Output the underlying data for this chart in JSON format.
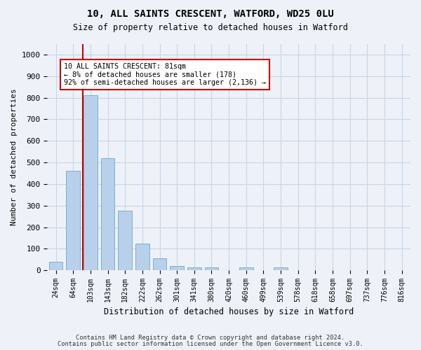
{
  "title1": "10, ALL SAINTS CRESCENT, WATFORD, WD25 0LU",
  "title2": "Size of property relative to detached houses in Watford",
  "xlabel": "Distribution of detached houses by size in Watford",
  "ylabel": "Number of detached properties",
  "categories": [
    "24sqm",
    "64sqm",
    "103sqm",
    "143sqm",
    "182sqm",
    "222sqm",
    "262sqm",
    "301sqm",
    "341sqm",
    "380sqm",
    "420sqm",
    "460sqm",
    "499sqm",
    "539sqm",
    "578sqm",
    "618sqm",
    "658sqm",
    "697sqm",
    "737sqm",
    "776sqm",
    "816sqm"
  ],
  "values": [
    40,
    460,
    810,
    520,
    275,
    125,
    55,
    20,
    12,
    12,
    0,
    12,
    0,
    12,
    0,
    0,
    0,
    0,
    0,
    0,
    0
  ],
  "bar_color": "#b8d0ea",
  "bar_edge_color": "#7aafd4",
  "grid_color": "#c8d4e8",
  "background_color": "#eef2f8",
  "ylim": [
    0,
    1050
  ],
  "yticks": [
    0,
    100,
    200,
    300,
    400,
    500,
    600,
    700,
    800,
    900,
    1000
  ],
  "vline_x": 1.55,
  "vline_color": "#cc0000",
  "annotation_line1": "10 ALL SAINTS CRESCENT: 81sqm",
  "annotation_line2": "← 8% of detached houses are smaller (178)",
  "annotation_line3": "92% of semi-detached houses are larger (2,136) →",
  "annotation_box_color": "#cc0000",
  "footer1": "Contains HM Land Registry data © Crown copyright and database right 2024.",
  "footer2": "Contains public sector information licensed under the Open Government Licence v3.0."
}
